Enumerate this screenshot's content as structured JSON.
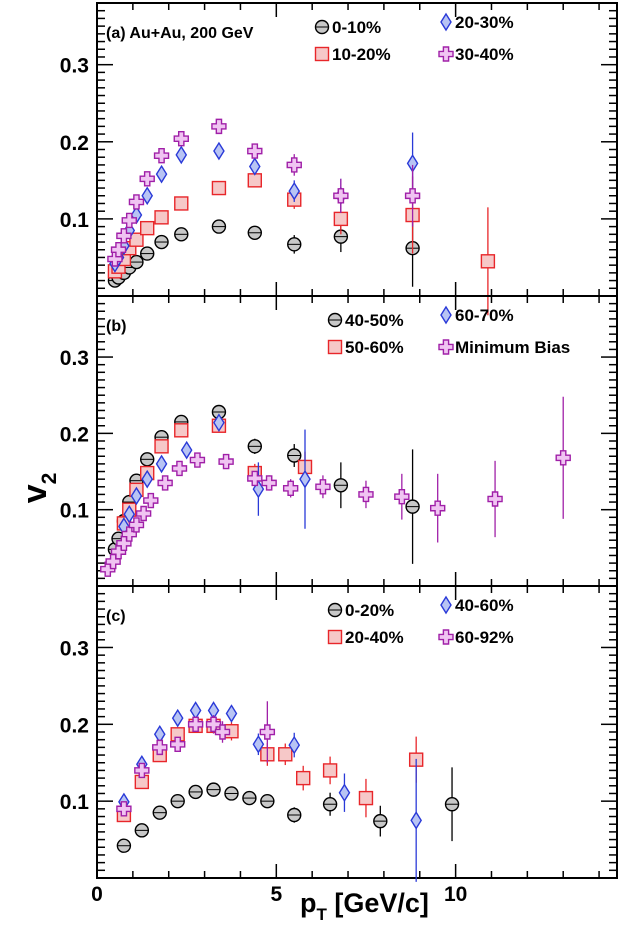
{
  "chart_data": {
    "type": "scatter",
    "x_axis": {
      "label_main": "p",
      "label_sub": "T",
      "label_unit": " [GeV/c]",
      "range": [
        0,
        14.5
      ],
      "ticks": [
        0,
        5,
        10
      ],
      "tick_labels": [
        "0",
        "5",
        "10"
      ]
    },
    "y_axis": {
      "label_main": "v",
      "label_sub": "2",
      "range": [
        0,
        0.38
      ],
      "ticks": [
        0.1,
        0.2,
        0.3
      ],
      "tick_labels": [
        "0.1",
        "0.2",
        "0.3"
      ]
    },
    "colors": {
      "black": "#000000",
      "red": "#e8262a",
      "blue": "#2a3ad8",
      "purple": "#a020a8",
      "gray_fill": "#c8c8c8",
      "red_fill": "#f6c8c8",
      "blue_fill": "#b8c4f4",
      "purple_fill": "#f0c4f2"
    },
    "panels": [
      {
        "label": "(a) Au+Au, 200 GeV",
        "series": [
          {
            "name": "0-10%",
            "marker": "circle",
            "color": "black",
            "points": [
              [
                0.5,
                0.02,
                0.003
              ],
              [
                0.6,
                0.024,
                0.003
              ],
              [
                0.75,
                0.03,
                0.003
              ],
              [
                0.9,
                0.037,
                0.003
              ],
              [
                1.1,
                0.044,
                0.003
              ],
              [
                1.4,
                0.055,
                0.004
              ],
              [
                1.8,
                0.07,
                0.004
              ],
              [
                2.35,
                0.08,
                0.005
              ],
              [
                3.4,
                0.09,
                0.006
              ],
              [
                4.4,
                0.082,
                0.008
              ],
              [
                5.5,
                0.067,
                0.012
              ],
              [
                6.8,
                0.077,
                0.02
              ],
              [
                8.8,
                0.062,
                0.05
              ]
            ]
          },
          {
            "name": "10-20%",
            "marker": "square",
            "color": "red",
            "points": [
              [
                0.5,
                0.032,
                0.003
              ],
              [
                0.6,
                0.038,
                0.003
              ],
              [
                0.75,
                0.048,
                0.003
              ],
              [
                0.9,
                0.062,
                0.003
              ],
              [
                1.1,
                0.073,
                0.003
              ],
              [
                1.4,
                0.088,
                0.004
              ],
              [
                1.8,
                0.102,
                0.004
              ],
              [
                2.35,
                0.12,
                0.005
              ],
              [
                3.4,
                0.14,
                0.006
              ],
              [
                4.4,
                0.15,
                0.008
              ],
              [
                5.5,
                0.125,
                0.012
              ],
              [
                6.8,
                0.1,
                0.02
              ],
              [
                8.8,
                0.105,
                0.05
              ],
              [
                10.9,
                0.045,
                0.07
              ]
            ]
          },
          {
            "name": "20-30%",
            "marker": "diamond",
            "color": "blue",
            "points": [
              [
                0.5,
                0.042,
                0.003
              ],
              [
                0.6,
                0.05,
                0.003
              ],
              [
                0.75,
                0.065,
                0.003
              ],
              [
                0.9,
                0.085,
                0.003
              ],
              [
                1.1,
                0.105,
                0.003
              ],
              [
                1.4,
                0.13,
                0.004
              ],
              [
                1.8,
                0.158,
                0.004
              ],
              [
                2.35,
                0.183,
                0.005
              ],
              [
                3.4,
                0.188,
                0.007
              ],
              [
                4.4,
                0.168,
                0.009
              ],
              [
                5.5,
                0.136,
                0.014
              ],
              [
                6.8,
                0.13,
                0.022
              ],
              [
                8.8,
                0.172,
                0.04
              ]
            ]
          },
          {
            "name": "30-40%",
            "marker": "cross",
            "color": "purple",
            "points": [
              [
                0.5,
                0.048,
                0.003
              ],
              [
                0.6,
                0.06,
                0.003
              ],
              [
                0.75,
                0.078,
                0.003
              ],
              [
                0.9,
                0.098,
                0.003
              ],
              [
                1.1,
                0.122,
                0.003
              ],
              [
                1.4,
                0.152,
                0.004
              ],
              [
                1.8,
                0.182,
                0.004
              ],
              [
                2.35,
                0.204,
                0.005
              ],
              [
                3.4,
                0.22,
                0.007
              ],
              [
                4.4,
                0.188,
                0.009
              ],
              [
                5.5,
                0.17,
                0.014
              ],
              [
                6.8,
                0.13,
                0.022
              ],
              [
                8.8,
                0.13,
                0.04
              ]
            ]
          }
        ]
      },
      {
        "label": "(b)",
        "series": [
          {
            "name": "40-50%",
            "marker": "circle",
            "color": "black",
            "points": [
              [
                0.5,
                0.048,
                0.003
              ],
              [
                0.6,
                0.062,
                0.003
              ],
              [
                0.75,
                0.085,
                0.003
              ],
              [
                0.9,
                0.11,
                0.003
              ],
              [
                1.1,
                0.138,
                0.003
              ],
              [
                1.4,
                0.166,
                0.004
              ],
              [
                1.8,
                0.195,
                0.005
              ],
              [
                2.35,
                0.215,
                0.006
              ],
              [
                3.4,
                0.228,
                0.008
              ],
              [
                4.4,
                0.183,
                0.01
              ],
              [
                5.5,
                0.171,
                0.015
              ],
              [
                6.8,
                0.132,
                0.03
              ],
              [
                8.8,
                0.104,
                0.075
              ]
            ]
          },
          {
            "name": "50-60%",
            "marker": "square",
            "color": "red",
            "points": [
              [
                0.75,
                0.082,
                0.003
              ],
              [
                0.9,
                0.1,
                0.003
              ],
              [
                1.1,
                0.126,
                0.003
              ],
              [
                1.4,
                0.148,
                0.004
              ],
              [
                1.8,
                0.183,
                0.005
              ],
              [
                2.35,
                0.204,
                0.006
              ],
              [
                3.4,
                0.21,
                0.008
              ],
              [
                4.4,
                0.148,
                0.012
              ],
              [
                5.8,
                0.156,
                0.02
              ]
            ]
          },
          {
            "name": "60-70%",
            "marker": "diamond",
            "color": "blue",
            "points": [
              [
                0.75,
                0.078,
                0.003
              ],
              [
                0.9,
                0.094,
                0.003
              ],
              [
                1.1,
                0.118,
                0.004
              ],
              [
                1.4,
                0.14,
                0.005
              ],
              [
                1.8,
                0.16,
                0.006
              ],
              [
                2.5,
                0.178,
                0.007
              ],
              [
                3.4,
                0.214,
                0.01
              ],
              [
                4.5,
                0.127,
                0.035
              ],
              [
                5.8,
                0.14,
                0.065
              ]
            ]
          },
          {
            "name": "Minimum Bias",
            "marker": "cross",
            "color": "purple",
            "points": [
              [
                0.3,
                0.022,
                0.002
              ],
              [
                0.45,
                0.032,
                0.002
              ],
              [
                0.6,
                0.045,
                0.002
              ],
              [
                0.75,
                0.056,
                0.002
              ],
              [
                0.9,
                0.068,
                0.002
              ],
              [
                1.1,
                0.08,
                0.002
              ],
              [
                1.3,
                0.095,
                0.003
              ],
              [
                1.5,
                0.112,
                0.003
              ],
              [
                1.9,
                0.135,
                0.004
              ],
              [
                2.3,
                0.154,
                0.004
              ],
              [
                2.8,
                0.165,
                0.005
              ],
              [
                3.6,
                0.163,
                0.006
              ],
              [
                4.4,
                0.141,
                0.008
              ],
              [
                4.8,
                0.135,
                0.01
              ],
              [
                5.4,
                0.128,
                0.012
              ],
              [
                6.3,
                0.13,
                0.015
              ],
              [
                7.5,
                0.12,
                0.018
              ],
              [
                8.5,
                0.117,
                0.03
              ],
              [
                9.5,
                0.102,
                0.045
              ],
              [
                11.1,
                0.114,
                0.05
              ],
              [
                13,
                0.168,
                0.08
              ]
            ]
          }
        ]
      },
      {
        "label": "(c)",
        "series": [
          {
            "name": "0-20%",
            "marker": "circle",
            "color": "black",
            "points": [
              [
                0.75,
                0.042,
                0.003
              ],
              [
                1.25,
                0.062,
                0.003
              ],
              [
                1.75,
                0.085,
                0.003
              ],
              [
                2.25,
                0.1,
                0.004
              ],
              [
                2.75,
                0.112,
                0.004
              ],
              [
                3.25,
                0.115,
                0.005
              ],
              [
                3.75,
                0.11,
                0.006
              ],
              [
                4.25,
                0.104,
                0.007
              ],
              [
                4.75,
                0.1,
                0.008
              ],
              [
                5.5,
                0.082,
                0.01
              ],
              [
                6.5,
                0.096,
                0.015
              ],
              [
                7.9,
                0.074,
                0.02
              ],
              [
                9.9,
                0.096,
                0.048
              ]
            ]
          },
          {
            "name": "20-40%",
            "marker": "square",
            "color": "red",
            "points": [
              [
                0.75,
                0.082,
                0.004
              ],
              [
                1.25,
                0.125,
                0.005
              ],
              [
                1.75,
                0.16,
                0.006
              ],
              [
                2.25,
                0.187,
                0.007
              ],
              [
                2.75,
                0.198,
                0.008
              ],
              [
                3.25,
                0.198,
                0.01
              ],
              [
                3.75,
                0.191,
                0.012
              ],
              [
                4.75,
                0.161,
                0.015
              ],
              [
                5.25,
                0.161,
                0.014
              ],
              [
                5.75,
                0.13,
                0.016
              ],
              [
                6.5,
                0.14,
                0.018
              ],
              [
                7.5,
                0.104,
                0.025
              ],
              [
                8.9,
                0.154,
                0.03
              ]
            ]
          },
          {
            "name": "40-60%",
            "marker": "diamond",
            "color": "blue",
            "points": [
              [
                0.75,
                0.099,
                0.004
              ],
              [
                1.25,
                0.148,
                0.005
              ],
              [
                1.75,
                0.187,
                0.006
              ],
              [
                2.25,
                0.208,
                0.007
              ],
              [
                2.75,
                0.218,
                0.008
              ],
              [
                3.25,
                0.218,
                0.009
              ],
              [
                3.75,
                0.214,
                0.01
              ],
              [
                4.5,
                0.174,
                0.014
              ],
              [
                5.5,
                0.173,
                0.016
              ],
              [
                6.9,
                0.111,
                0.025
              ],
              [
                8.9,
                0.075,
                0.08
              ]
            ]
          },
          {
            "name": "60-92%",
            "marker": "cross",
            "color": "purple",
            "points": [
              [
                0.75,
                0.09,
                0.004
              ],
              [
                1.25,
                0.14,
                0.005
              ],
              [
                1.75,
                0.17,
                0.006
              ],
              [
                2.25,
                0.174,
                0.008
              ],
              [
                2.75,
                0.2,
                0.01
              ],
              [
                3.25,
                0.2,
                0.012
              ],
              [
                3.5,
                0.19,
                0.014
              ],
              [
                4.75,
                0.19,
                0.04
              ]
            ]
          }
        ]
      }
    ]
  }
}
